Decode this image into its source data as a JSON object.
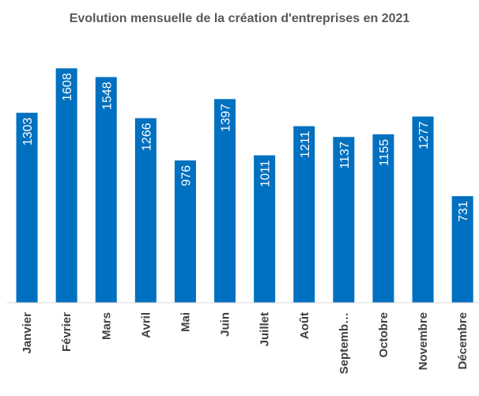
{
  "chart_data": {
    "type": "bar",
    "title": "Evolution mensuelle de la création d'entreprises en 2021",
    "categories": [
      "Janvier",
      "Février",
      "Mars",
      "Avril",
      "Mai",
      "Juin",
      "Juillet",
      "Août",
      "Septemb…",
      "Octobre",
      "Novembre",
      "Décembre"
    ],
    "values": [
      1303,
      1608,
      1548,
      1266,
      976,
      1397,
      1011,
      1211,
      1137,
      1155,
      1277,
      731
    ],
    "color": "#0070c0",
    "ylim": [
      0,
      1800
    ]
  }
}
